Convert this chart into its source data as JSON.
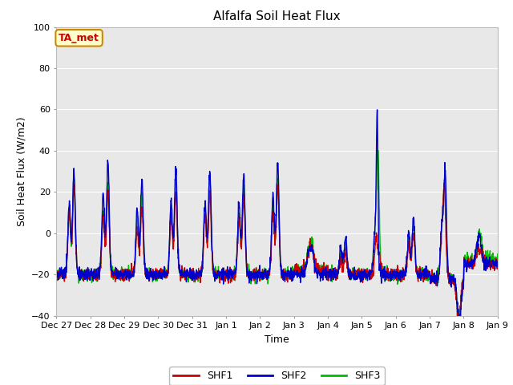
{
  "title": "Alfalfa Soil Heat Flux",
  "ylabel": "Soil Heat Flux (W/m2)",
  "xlabel": "Time",
  "ylim": [
    -40,
    100
  ],
  "background_color": "#ffffff",
  "plot_bg_color": "#e8e8e8",
  "grid_color": "#ffffff",
  "shf1_color": "#cc0000",
  "shf2_color": "#0000cc",
  "shf3_color": "#00bb00",
  "annotation_text": "TA_met",
  "annotation_bg": "#ffffcc",
  "annotation_border": "#cc8800",
  "annotation_text_color": "#cc0000",
  "legend_labels": [
    "SHF1",
    "SHF2",
    "SHF3"
  ],
  "yticks": [
    -40,
    -20,
    0,
    20,
    40,
    60,
    80,
    100
  ],
  "xtick_labels": [
    "Dec 27",
    "Dec 28",
    "Dec 29",
    "Dec 30",
    "Dec 31",
    "Jan 1",
    "Jan 2",
    "Jan 3",
    "Jan 4",
    "Jan 5",
    "Jan 6",
    "Jan 7",
    "Jan 8",
    "Jan 9"
  ],
  "linewidth": 1.0,
  "title_fontsize": 11,
  "label_fontsize": 9,
  "tick_fontsize": 8
}
